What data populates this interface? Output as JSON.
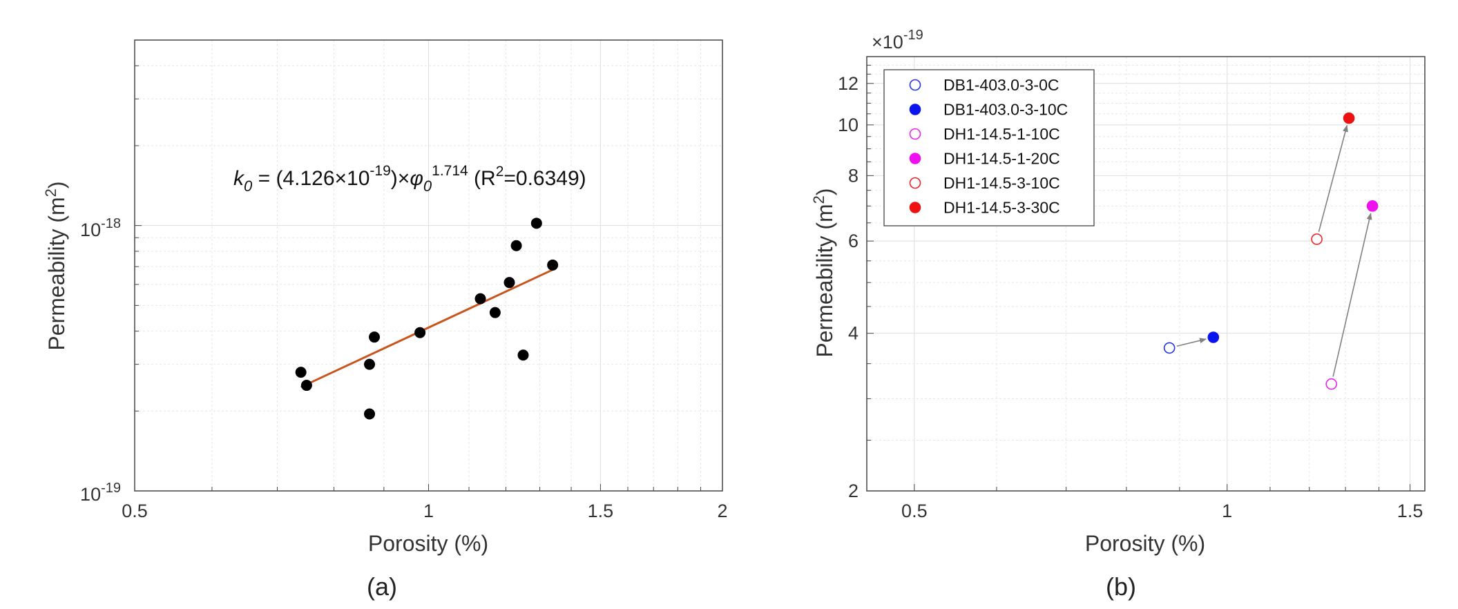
{
  "chart_data": [
    {
      "panel": "(a)",
      "type": "scatter",
      "xlabel": "Porosity (%)",
      "ylabel": "Permeability (m",
      "ylabel_sup": "2",
      "ylabel_close": ")",
      "xscale": "log",
      "yscale": "log",
      "xlim": [
        0.5,
        2
      ],
      "ylim": [
        1e-19,
        5e-18
      ],
      "grid": true,
      "x_ticks": [
        0.5,
        1,
        1.5,
        2
      ],
      "x_tick_labels": [
        "0.5",
        "1",
        "1.5",
        "2"
      ],
      "y_ticks": [
        1e-19,
        1e-18
      ],
      "y_tick_bases": [
        "10",
        "10"
      ],
      "y_tick_exps": [
        "-19",
        "-18"
      ],
      "equation": {
        "k": "k",
        "k_sub": "0",
        "mid": " = (4.126",
        "times": "×",
        "base": "10",
        "exp": "-19",
        "close": ")",
        "times2": "×",
        "phi": "φ",
        "phi_sub": "0",
        "phi_exp": "1.714",
        "r2_open": " (R",
        "r2_sup": "2",
        "r2_val": "=0.6349)"
      },
      "points": [
        {
          "x": 0.74,
          "y": 2.8e-19
        },
        {
          "x": 0.75,
          "y": 2.5e-19
        },
        {
          "x": 0.87,
          "y": 3e-19
        },
        {
          "x": 0.88,
          "y": 3.8e-19
        },
        {
          "x": 0.87,
          "y": 1.95e-19
        },
        {
          "x": 0.98,
          "y": 3.95e-19
        },
        {
          "x": 1.13,
          "y": 5.3e-19
        },
        {
          "x": 1.17,
          "y": 4.7e-19
        },
        {
          "x": 1.21,
          "y": 6.1e-19
        },
        {
          "x": 1.23,
          "y": 8.4e-19
        },
        {
          "x": 1.25,
          "y": 3.25e-19
        },
        {
          "x": 1.29,
          "y": 1.02e-18
        },
        {
          "x": 1.34,
          "y": 7.1e-19
        }
      ],
      "fit": {
        "a": 4.126e-19,
        "b": 1.714,
        "x_range": [
          0.74,
          1.34
        ],
        "color": "#c8551d"
      },
      "point_color": "#000000"
    },
    {
      "panel": "(b)",
      "type": "scatter",
      "xlabel": "Porosity (%)",
      "ylabel": "Permeability (m",
      "ylabel_sup": "2",
      "ylabel_close": ")",
      "xscale": "log",
      "yscale": "log",
      "xlim": [
        0.45,
        1.55
      ],
      "ylim": [
        2,
        13.5
      ],
      "grid": true,
      "y_multiplier": {
        "times": "×",
        "base": "10",
        "exp": "-19"
      },
      "x_ticks": [
        0.5,
        1,
        1.5
      ],
      "x_tick_labels": [
        "0.5",
        "1",
        "1.5"
      ],
      "y_ticks": [
        2,
        4,
        6,
        8,
        10,
        12
      ],
      "y_tick_labels": [
        "2",
        "4",
        "6",
        "8",
        "10",
        "12"
      ],
      "legend_position": "top-left",
      "series": [
        {
          "name": "DB1-403.0-3-0C",
          "color": "#2233ee",
          "filled": false,
          "x": 0.88,
          "y": 3.75
        },
        {
          "name": "DB1-403.0-3-10C",
          "color": "#0a14ee",
          "filled": true,
          "x": 0.97,
          "y": 3.93
        },
        {
          "name": "DH1-14.5-1-10C",
          "color": "#ee22ee",
          "filled": false,
          "x": 1.26,
          "y": 3.2
        },
        {
          "name": "DH1-14.5-1-20C",
          "color": "#ee11ee",
          "filled": true,
          "x": 1.38,
          "y": 7.0
        },
        {
          "name": "DH1-14.5-3-10C",
          "color": "#ee2222",
          "filled": false,
          "x": 1.22,
          "y": 6.05
        },
        {
          "name": "DH1-14.5-3-30C",
          "color": "#ee1111",
          "filled": true,
          "x": 1.31,
          "y": 10.3
        }
      ],
      "arrows": [
        {
          "from": 0,
          "to": 1
        },
        {
          "from": 2,
          "to": 3
        },
        {
          "from": 4,
          "to": 5
        }
      ],
      "arrow_color": "#808080"
    }
  ]
}
